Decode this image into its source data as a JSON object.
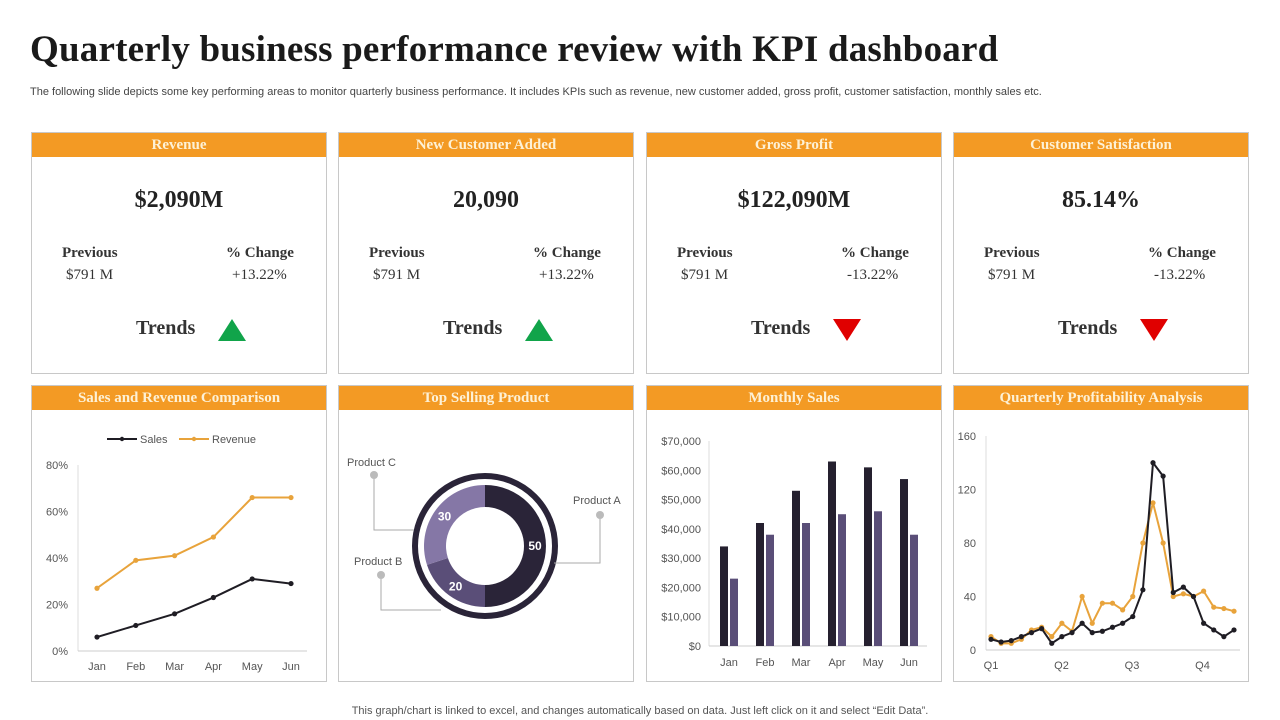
{
  "title": "Quarterly business performance review with KPI dashboard",
  "subtitle": "The following slide depicts some key performing areas to monitor quarterly business performance. It includes KPIs such as revenue, new customer added, gross profit, customer satisfaction, monthly sales etc.",
  "footer": "This graph/chart is linked to excel,  and changes automatically based on data. Just left click on it and select “Edit Data”.",
  "colors": {
    "header": "#f39a24",
    "up": "#11a44a",
    "down": "#e00000",
    "dark": "#25202f",
    "purple": "#5a4e78",
    "orange": "#e8a33b"
  },
  "kpis": [
    {
      "title": "Revenue",
      "value": "$2,090M",
      "previous_label": "Previous",
      "previous": "$791 M",
      "change_label": "% Change",
      "change": "+13.22%",
      "trend_label": "Trends",
      "trend": "up"
    },
    {
      "title": "New Customer Added",
      "value": "20,090",
      "previous_label": "Previous",
      "previous": "$791 M",
      "change_label": "% Change",
      "change": "+13.22%",
      "trend_label": "Trends",
      "trend": "up"
    },
    {
      "title": "Gross Profit",
      "value": "$122,090M",
      "previous_label": "Previous",
      "previous": "$791 M",
      "change_label": "% Change",
      "change": "-13.22%",
      "trend_label": "Trends",
      "trend": "down"
    },
    {
      "title": "Customer Satisfaction",
      "value": "85.14%",
      "previous_label": "Previous",
      "previous": "$791 M",
      "change_label": "% Change",
      "change": "-13.22%",
      "trend_label": "Trends",
      "trend": "down"
    }
  ],
  "chart_data": [
    {
      "title": "Sales and Revenue Comparison",
      "type": "line",
      "categories": [
        "Jan",
        "Feb",
        "Mar",
        "Apr",
        "May",
        "Jun"
      ],
      "series": [
        {
          "name": "Sales",
          "values": [
            6,
            11,
            16,
            23,
            31,
            29
          ],
          "color": "#1f1d24"
        },
        {
          "name": "Revenue",
          "values": [
            27,
            39,
            41,
            49,
            66,
            66
          ],
          "color": "#e8a33b"
        }
      ],
      "yticks": [
        "0%",
        "20%",
        "40%",
        "60%",
        "80%"
      ],
      "ylim": [
        0,
        80
      ],
      "legend": "top"
    },
    {
      "title": "Top Selling Product",
      "type": "pie",
      "categories": [
        "Product A",
        "Product B",
        "Product C"
      ],
      "values": [
        50,
        20,
        30
      ],
      "colors": [
        "#2a2438",
        "#5a4e78",
        "#8577a6"
      ]
    },
    {
      "title": "Monthly Sales",
      "type": "bar",
      "categories": [
        "Jan",
        "Feb",
        "Mar",
        "Apr",
        "May",
        "Jun"
      ],
      "series": [
        {
          "values": [
            34000,
            42000,
            53000,
            63000,
            61000,
            57000
          ],
          "color": "#25202f"
        },
        {
          "values": [
            23000,
            38000,
            42000,
            45000,
            46000,
            38000
          ],
          "color": "#5a4e78"
        }
      ],
      "yticks": [
        "$0",
        "$10,000",
        "$20,000",
        "$30,000",
        "$40,000",
        "$50,000",
        "$60,000",
        "$70,000"
      ],
      "ylim": [
        0,
        70000
      ]
    },
    {
      "title": "Quarterly Profitability Analysis",
      "type": "line",
      "xticks": [
        "Q1",
        "Q2",
        "Q3",
        "Q4"
      ],
      "series": [
        {
          "values": [
            8,
            6,
            7,
            10,
            13,
            16,
            5,
            10,
            13,
            20,
            13,
            14,
            17,
            20,
            25,
            45,
            140,
            130,
            43,
            47,
            40,
            20,
            15,
            10,
            15
          ],
          "color": "#1f1d24"
        },
        {
          "values": [
            10,
            5,
            5,
            8,
            15,
            17,
            10,
            20,
            14,
            40,
            20,
            35,
            35,
            30,
            40,
            80,
            110,
            80,
            40,
            42,
            40,
            44,
            32,
            31,
            29
          ],
          "color": "#e8a33b"
        }
      ],
      "yticks": [
        "0",
        "40",
        "80",
        "120",
        "160"
      ],
      "ylim": [
        0,
        160
      ]
    }
  ]
}
